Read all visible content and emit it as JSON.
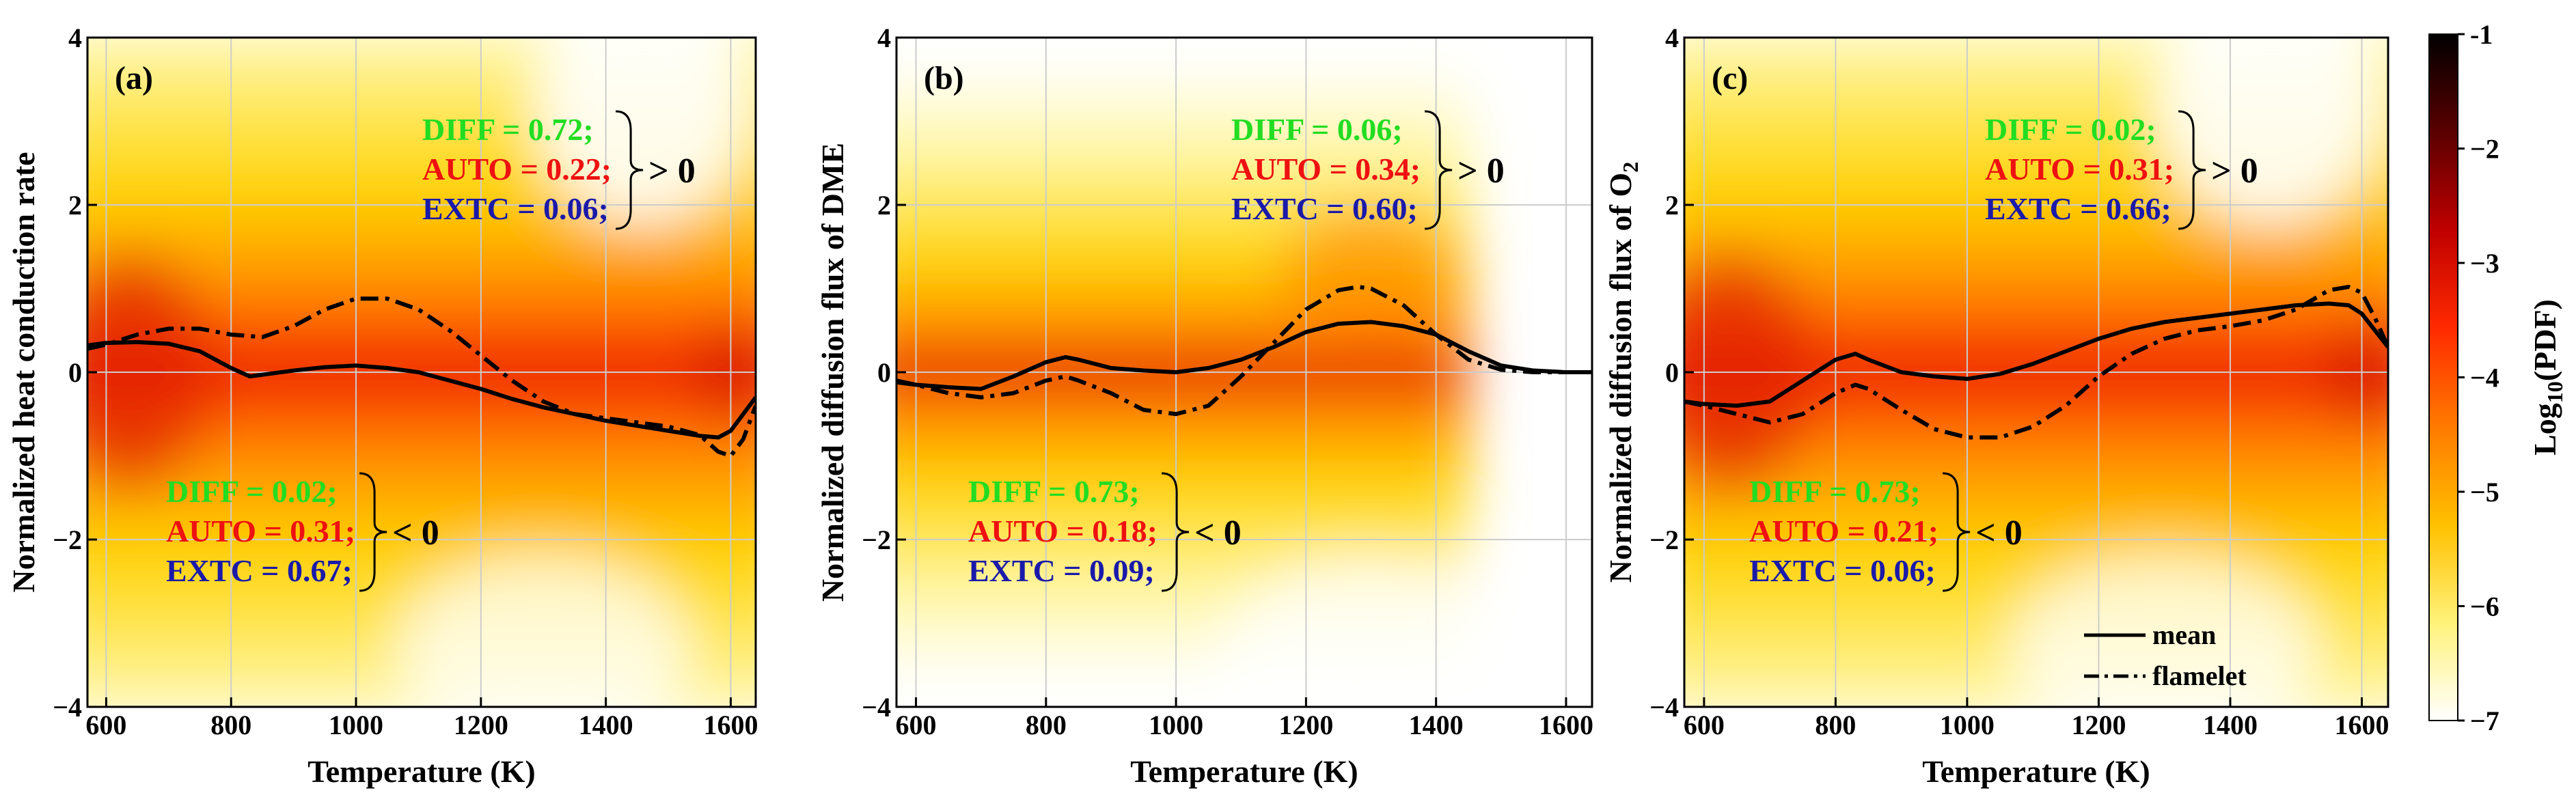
{
  "figure": {
    "x_label": "Temperature (K)",
    "colorbar": {
      "label_main": "Log",
      "label_sub": "10",
      "label_end": "(PDF)",
      "ticks": [
        "-1",
        "−2",
        "−3",
        "−4",
        "−5",
        "−6",
        "−7"
      ],
      "colors": [
        "#000000",
        "#5a0000",
        "#c00000",
        "#ff2a00",
        "#ff7a00",
        "#ffc000",
        "#fff27a",
        "#ffffff"
      ]
    },
    "legend": {
      "mean": "mean",
      "flamelet": "flamelet"
    },
    "colors": {
      "DIFF": "#22dd22",
      "AUTO": "#ee1111",
      "EXTC": "#1a1aaa"
    }
  },
  "chart_data": [
    {
      "type": "heatmap",
      "panel": "(a)",
      "ylabel": "Normalized heat conduction rate",
      "xlim": [
        570,
        1640
      ],
      "ylim": [
        -4,
        4
      ],
      "x_ticks": [
        "600",
        "800",
        "1000",
        "1200",
        "1400",
        "1600"
      ],
      "y_ticks": [
        "4",
        "2",
        "0",
        "−2",
        "−4"
      ],
      "series": [
        {
          "name": "mean",
          "x": [
            570,
            600,
            650,
            700,
            750,
            800,
            830,
            850,
            900,
            950,
            1000,
            1050,
            1100,
            1150,
            1200,
            1250,
            1300,
            1350,
            1400,
            1450,
            1500,
            1550,
            1580,
            1600,
            1620,
            1640
          ],
          "y": [
            0.32,
            0.35,
            0.36,
            0.34,
            0.25,
            0.05,
            -0.05,
            -0.03,
            0.02,
            0.06,
            0.08,
            0.05,
            0.0,
            -0.1,
            -0.2,
            -0.32,
            -0.42,
            -0.5,
            -0.58,
            -0.64,
            -0.7,
            -0.76,
            -0.78,
            -0.7,
            -0.5,
            -0.3
          ]
        },
        {
          "name": "flamelet",
          "x": [
            570,
            600,
            650,
            700,
            750,
            800,
            850,
            900,
            950,
            1000,
            1050,
            1100,
            1150,
            1200,
            1250,
            1300,
            1350,
            1400,
            1450,
            1500,
            1550,
            1580,
            1600,
            1620,
            1640
          ],
          "y": [
            0.28,
            0.33,
            0.45,
            0.52,
            0.52,
            0.45,
            0.42,
            0.55,
            0.75,
            0.88,
            0.88,
            0.75,
            0.5,
            0.2,
            -0.1,
            -0.35,
            -0.5,
            -0.55,
            -0.6,
            -0.65,
            -0.75,
            -0.95,
            -1.0,
            -0.8,
            -0.4
          ]
        }
      ],
      "positive": {
        "DIFF": "DIFF   = 0.72;",
        "AUTO": "AUTO = 0.22;",
        "EXTC": "EXTC = 0.06;",
        "cmp": "> 0"
      },
      "negative": {
        "DIFF": "DIFF   = 0.02;",
        "AUTO": "AUTO = 0.31;",
        "EXTC": "EXTC = 0.67;",
        "cmp": "< 0"
      }
    },
    {
      "type": "heatmap",
      "panel": "(b)",
      "ylabel": "Normalized diffusion flux of DME",
      "xlim": [
        570,
        1640
      ],
      "ylim": [
        -4,
        4
      ],
      "x_ticks": [
        "600",
        "800",
        "1000",
        "1200",
        "1400",
        "1600"
      ],
      "y_ticks": [
        "4",
        "2",
        "0",
        "−2",
        "−4"
      ],
      "series": [
        {
          "name": "mean",
          "x": [
            570,
            600,
            650,
            700,
            750,
            800,
            830,
            850,
            900,
            950,
            1000,
            1050,
            1100,
            1150,
            1200,
            1250,
            1300,
            1350,
            1400,
            1450,
            1500,
            1550,
            1600,
            1640
          ],
          "y": [
            -0.12,
            -0.15,
            -0.18,
            -0.2,
            -0.05,
            0.12,
            0.18,
            0.15,
            0.05,
            0.02,
            0.0,
            0.05,
            0.15,
            0.3,
            0.48,
            0.58,
            0.6,
            0.55,
            0.45,
            0.25,
            0.08,
            0.02,
            0.0,
            0.0
          ]
        },
        {
          "name": "flamelet",
          "x": [
            570,
            600,
            650,
            700,
            750,
            800,
            830,
            850,
            900,
            950,
            1000,
            1050,
            1100,
            1150,
            1200,
            1250,
            1280,
            1300,
            1350,
            1400,
            1450,
            1500,
            1550,
            1600,
            1640
          ],
          "y": [
            -0.1,
            -0.15,
            -0.25,
            -0.3,
            -0.25,
            -0.1,
            -0.05,
            -0.1,
            -0.25,
            -0.45,
            -0.5,
            -0.4,
            -0.05,
            0.35,
            0.75,
            0.98,
            1.02,
            1.0,
            0.8,
            0.45,
            0.15,
            0.03,
            0.0,
            0.0,
            0.0
          ]
        }
      ],
      "positive": {
        "DIFF": "DIFF   = 0.06;",
        "AUTO": "AUTO = 0.34;",
        "EXTC": "EXTC = 0.60;",
        "cmp": "> 0"
      },
      "negative": {
        "DIFF": "DIFF   = 0.73;",
        "AUTO": "AUTO = 0.18;",
        "EXTC": "EXTC = 0.09;",
        "cmp": "< 0"
      }
    },
    {
      "type": "heatmap",
      "panel": "(c)",
      "ylabel": "Normalized diffusion flux of O",
      "ylabel_sub": "2",
      "xlim": [
        570,
        1640
      ],
      "ylim": [
        -4,
        4
      ],
      "x_ticks": [
        "600",
        "800",
        "1000",
        "1200",
        "1400",
        "1600"
      ],
      "y_ticks": [
        "4",
        "2",
        "0",
        "−2",
        "−4"
      ],
      "series": [
        {
          "name": "mean",
          "x": [
            570,
            600,
            650,
            700,
            750,
            800,
            830,
            850,
            900,
            950,
            1000,
            1050,
            1100,
            1150,
            1200,
            1250,
            1300,
            1350,
            1400,
            1450,
            1500,
            1550,
            1580,
            1600,
            1620,
            1640
          ],
          "y": [
            -0.35,
            -0.38,
            -0.4,
            -0.35,
            -0.1,
            0.15,
            0.22,
            0.15,
            0.0,
            -0.05,
            -0.08,
            -0.02,
            0.1,
            0.25,
            0.4,
            0.52,
            0.6,
            0.65,
            0.7,
            0.75,
            0.8,
            0.82,
            0.8,
            0.7,
            0.5,
            0.3
          ]
        },
        {
          "name": "flamelet",
          "x": [
            570,
            600,
            650,
            700,
            750,
            800,
            830,
            850,
            900,
            950,
            1000,
            1050,
            1100,
            1150,
            1200,
            1250,
            1300,
            1350,
            1400,
            1450,
            1500,
            1550,
            1580,
            1600,
            1620,
            1640
          ],
          "y": [
            -0.35,
            -0.4,
            -0.5,
            -0.6,
            -0.5,
            -0.25,
            -0.15,
            -0.2,
            -0.45,
            -0.68,
            -0.78,
            -0.78,
            -0.65,
            -0.4,
            -0.05,
            0.22,
            0.4,
            0.5,
            0.55,
            0.62,
            0.75,
            0.98,
            1.02,
            0.95,
            0.65,
            0.3
          ]
        }
      ],
      "positive": {
        "DIFF": "DIFF   = 0.02;",
        "AUTO": "AUTO = 0.31;",
        "EXTC": "EXTC = 0.66;",
        "cmp": "> 0"
      },
      "negative": {
        "DIFF": "DIFF   = 0.73;",
        "AUTO": "AUTO = 0.21;",
        "EXTC": "EXTC = 0.06;",
        "cmp": "< 0"
      }
    }
  ]
}
